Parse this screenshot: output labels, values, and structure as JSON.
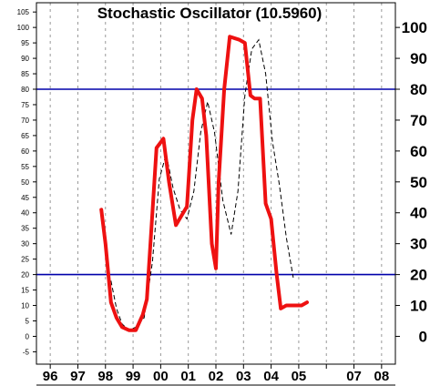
{
  "chart_data": {
    "type": "line",
    "title": "Stochastic Oscillator (10.5960)",
    "x_tick_labels": [
      "96",
      "97",
      "98",
      "99",
      "00",
      "01",
      "02",
      "03",
      "04",
      "05",
      "07",
      "08"
    ],
    "x_tick_years": [
      1996,
      1997,
      1998,
      1999,
      2000,
      2001,
      2002,
      2003,
      2004,
      2005,
      2007,
      2008
    ],
    "xlim": [
      1995.5,
      2008.5
    ],
    "ylim": [
      -9,
      108
    ],
    "y_ticks_left": [
      -5,
      0,
      5,
      10,
      15,
      20,
      25,
      30,
      35,
      40,
      45,
      50,
      55,
      60,
      65,
      70,
      75,
      80,
      85,
      90,
      95,
      100,
      105
    ],
    "y_ticks_right": [
      0,
      10,
      20,
      30,
      40,
      50,
      60,
      70,
      80,
      90,
      100
    ],
    "reference_lines": [
      20,
      80
    ],
    "grid": "vertical dashed at each year",
    "colors": {
      "k_line": "#ee1111",
      "d_line": "#000000",
      "reference": "#0000aa",
      "grid": "#999999"
    },
    "series": [
      {
        "style": "solid red",
        "x": [
          1997.85,
          1998.0,
          1998.2,
          1998.4,
          1998.6,
          1998.85,
          1999.1,
          1999.35,
          1999.5,
          1999.7,
          1999.85,
          2000.1,
          2000.3,
          2000.55,
          2000.75,
          2000.95,
          2001.15,
          2001.3,
          2001.5,
          2001.65,
          2001.85,
          2002.0,
          2002.1,
          2002.3,
          2002.5,
          2002.85,
          2003.05,
          2003.25,
          2003.4,
          2003.6,
          2003.8,
          2004.0,
          2004.2,
          2004.35,
          2004.55,
          2004.7,
          2004.9,
          2005.0,
          2005.1,
          2005.3
        ],
        "y": [
          41,
          30,
          11,
          6,
          3,
          2,
          2,
          7,
          12,
          40,
          61,
          64,
          50,
          36,
          39,
          42,
          70,
          80,
          77,
          65,
          30,
          22,
          50,
          80,
          97,
          96,
          95,
          78,
          77,
          77,
          43,
          38,
          20,
          9,
          10,
          10,
          10,
          10,
          10,
          11
        ]
      },
      {
        "style": "dashed black",
        "x": [
          1998.2,
          1998.4,
          1998.6,
          1998.85,
          1999.1,
          1999.4,
          1999.7,
          1999.95,
          2000.2,
          2000.45,
          2000.7,
          2000.95,
          2001.2,
          2001.45,
          2001.7,
          2001.95,
          2002.25,
          2002.55,
          2002.8,
          2003.05,
          2003.3,
          2003.55,
          2003.8,
          2004.05,
          2004.3,
          2004.55,
          2004.8
        ],
        "y": [
          18,
          9,
          4,
          2,
          3,
          6,
          24,
          51,
          59,
          48,
          41,
          38,
          47,
          66,
          76,
          66,
          44,
          33,
          47,
          78,
          93,
          96,
          85,
          63,
          49,
          32,
          19
        ]
      }
    ]
  }
}
